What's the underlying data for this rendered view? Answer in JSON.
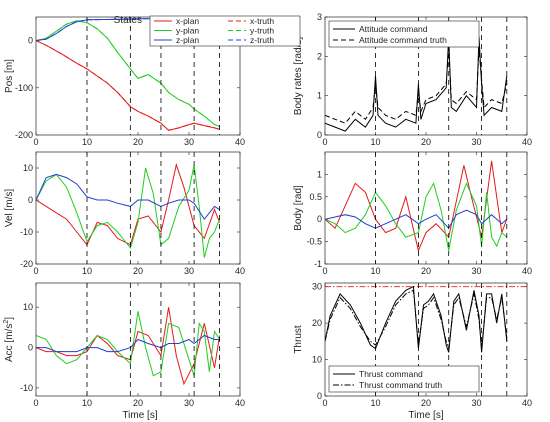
{
  "figure": {
    "states_label": "States",
    "x_axis_label": "Time [s]",
    "event_times": [
      10,
      18.5,
      24.5,
      31,
      36
    ]
  },
  "chart_data": [
    {
      "id": "pos",
      "type": "line",
      "ylabel": "Pos [m]",
      "xlim": [
        0,
        40
      ],
      "ylim": [
        -200,
        50
      ],
      "xticks": [
        0,
        10,
        20,
        30,
        40
      ],
      "yticks": [
        -200,
        -100,
        0
      ],
      "legend": {
        "title": "States",
        "placement": "top",
        "columns": 2
      },
      "series": [
        {
          "name": "x-plan",
          "color": "#e41a1c",
          "dash": "solid",
          "x": [
            0,
            2,
            5,
            8,
            10,
            12,
            14,
            16,
            18.5,
            20,
            22,
            24.5,
            26,
            28,
            30,
            31,
            33,
            35,
            36
          ],
          "y": [
            0,
            -10,
            -28,
            -48,
            -60,
            -75,
            -90,
            -110,
            -140,
            -150,
            -160,
            -175,
            -190,
            -185,
            -178,
            -175,
            -180,
            -185,
            -188
          ]
        },
        {
          "name": "x-truth",
          "color": "#e41a1c",
          "dash": "dashed",
          "x": [
            0,
            2,
            5,
            8,
            10,
            12,
            14,
            16,
            18.5,
            20,
            22,
            24.5,
            26,
            28,
            30,
            31,
            33,
            35,
            36
          ],
          "y": [
            0,
            -10,
            -28,
            -48,
            -60,
            -75,
            -90,
            -110,
            -140,
            -150,
            -160,
            -175,
            -190,
            -185,
            -178,
            -175,
            -180,
            -185,
            -188
          ]
        },
        {
          "name": "y-plan",
          "color": "#22cc22",
          "dash": "solid",
          "x": [
            0,
            2,
            4,
            6,
            8,
            10,
            12,
            14,
            16,
            18.5,
            20,
            22,
            24.5,
            26,
            28,
            30,
            31,
            33,
            35,
            36
          ],
          "y": [
            0,
            5,
            20,
            35,
            42,
            38,
            25,
            5,
            -25,
            -60,
            -80,
            -72,
            -90,
            -110,
            -125,
            -135,
            -145,
            -160,
            -178,
            -182
          ]
        },
        {
          "name": "y-truth",
          "color": "#22cc22",
          "dash": "dashed",
          "x": [
            0,
            2,
            4,
            6,
            8,
            10,
            12,
            14,
            16,
            18.5,
            20,
            22,
            24.5,
            26,
            28,
            30,
            31,
            33,
            35,
            36
          ],
          "y": [
            0,
            5,
            20,
            35,
            42,
            38,
            25,
            5,
            -25,
            -60,
            -80,
            -72,
            -90,
            -110,
            -125,
            -135,
            -145,
            -160,
            -178,
            -182
          ]
        },
        {
          "name": "z-plan",
          "color": "#1f3fd6",
          "dash": "solid",
          "x": [
            0,
            2,
            4,
            6,
            8,
            10,
            15,
            20,
            25,
            30,
            33,
            35,
            36
          ],
          "y": [
            0,
            3,
            15,
            30,
            40,
            44,
            45,
            46,
            47,
            47,
            45,
            42,
            40
          ]
        },
        {
          "name": "z-truth",
          "color": "#1f3fd6",
          "dash": "dashed",
          "x": [
            0,
            2,
            4,
            6,
            8,
            10,
            15,
            20,
            25,
            30,
            33,
            35,
            36
          ],
          "y": [
            0,
            3,
            15,
            30,
            40,
            44,
            45,
            46,
            47,
            47,
            45,
            42,
            40
          ]
        }
      ]
    },
    {
      "id": "vel",
      "type": "line",
      "ylabel": "Vel [m/s]",
      "xlim": [
        0,
        40
      ],
      "ylim": [
        -20,
        15
      ],
      "xticks": [
        0,
        10,
        20,
        30,
        40
      ],
      "yticks": [
        -20,
        -10,
        0,
        10
      ],
      "series": [
        {
          "name": "x",
          "color": "#e41a1c",
          "dash": "solid",
          "x": [
            0,
            2,
            4,
            6,
            8,
            10,
            12,
            14,
            16,
            18.5,
            20,
            22,
            24.5,
            26,
            27.5,
            29,
            31,
            33,
            35,
            36
          ],
          "y": [
            0,
            -2,
            -4,
            -6,
            -10,
            -14,
            -7,
            -8,
            -12,
            -14,
            -6,
            -5,
            -10,
            0,
            11,
            4,
            -8,
            -12,
            -3,
            -7
          ]
        },
        {
          "name": "y",
          "color": "#22cc22",
          "dash": "solid",
          "x": [
            0,
            2,
            4,
            6,
            8,
            10,
            12,
            14,
            16,
            18.5,
            20,
            21.5,
            23,
            24.5,
            26,
            28,
            30,
            31,
            32,
            33,
            34,
            35,
            36
          ],
          "y": [
            0,
            6,
            8,
            4,
            -4,
            -13,
            -8,
            -7,
            -10,
            -15,
            -7,
            10,
            2,
            -14,
            -12,
            -2,
            3,
            11,
            -2,
            -18,
            -12,
            -10,
            -6
          ]
        },
        {
          "name": "z",
          "color": "#1f3fd6",
          "dash": "solid",
          "x": [
            0,
            2,
            4,
            6,
            8,
            10,
            12,
            14,
            16,
            18.5,
            20,
            22,
            24.5,
            26,
            28,
            30,
            31,
            33,
            35,
            36
          ],
          "y": [
            0,
            7,
            8,
            7,
            5,
            1,
            0,
            0,
            -1,
            -2,
            0,
            0,
            -2,
            -1,
            0,
            0,
            -1,
            -6,
            -2,
            -3
          ]
        }
      ]
    },
    {
      "id": "acc",
      "type": "line",
      "ylabel": "Acc [m/s",
      "ylabel_superscript": "2",
      "ylabel_suffix": "]",
      "xlim": [
        0,
        40
      ],
      "ylim": [
        -12,
        16
      ],
      "xticks": [
        0,
        10,
        20,
        30,
        40
      ],
      "yticks": [
        -10,
        0,
        10
      ],
      "series": [
        {
          "name": "x",
          "color": "#e41a1c",
          "dash": "solid",
          "x": [
            0,
            2,
            4,
            6,
            8,
            10,
            12,
            14,
            16,
            18.5,
            20,
            22,
            24.5,
            26,
            27.5,
            29,
            31,
            33,
            35,
            36
          ],
          "y": [
            0,
            -1,
            -1,
            -2,
            -2,
            -1,
            3,
            1,
            -2,
            -3,
            4,
            3,
            -2,
            10,
            -2,
            -9,
            -4,
            6,
            -5,
            3
          ]
        },
        {
          "name": "y",
          "color": "#22cc22",
          "dash": "solid",
          "x": [
            0,
            2,
            4,
            6,
            8,
            10,
            12,
            14,
            16,
            18.5,
            20,
            21.5,
            23,
            24.5,
            26,
            28,
            30,
            31,
            32,
            33,
            34,
            35,
            36
          ],
          "y": [
            3,
            2,
            -2,
            -4,
            -3,
            0,
            3,
            2,
            -1,
            -4,
            9,
            0,
            -7,
            -6,
            6,
            5,
            -3,
            -7,
            6,
            4,
            -6,
            4,
            2
          ]
        },
        {
          "name": "z",
          "color": "#1f3fd6",
          "dash": "solid",
          "x": [
            0,
            2,
            4,
            6,
            8,
            10,
            12,
            14,
            16,
            18.5,
            20,
            22,
            24.5,
            26,
            28,
            30,
            31,
            33,
            35,
            36
          ],
          "y": [
            0,
            0,
            -1,
            -1,
            -1,
            0,
            0,
            -1,
            -1,
            0,
            2,
            1,
            0,
            1,
            1,
            2,
            1,
            3,
            2,
            2
          ]
        }
      ]
    },
    {
      "id": "body-rates",
      "type": "line",
      "ylabel": "Body rates [rad/s]",
      "xlim": [
        0,
        40
      ],
      "ylim": [
        0,
        3
      ],
      "xticks": [
        0,
        10,
        20,
        30,
        40
      ],
      "yticks": [
        0,
        1,
        2,
        3
      ],
      "legend": {
        "placement": "top-left"
      },
      "series": [
        {
          "name": "Attitude command",
          "color": "#000000",
          "dash": "solid",
          "x": [
            0,
            2,
            4,
            6,
            8,
            9.5,
            10,
            10.5,
            12,
            14,
            16,
            18,
            18.5,
            19,
            20,
            22,
            24,
            24.5,
            25,
            26,
            28,
            30,
            30.5,
            31,
            31.5,
            33,
            35,
            36
          ],
          "y": [
            0.3,
            0.2,
            0.1,
            0.4,
            0.2,
            0.5,
            1.5,
            0.5,
            0.3,
            0.2,
            0.4,
            0.3,
            1.3,
            0.4,
            0.8,
            0.9,
            1.2,
            2.5,
            0.7,
            0.6,
            1.0,
            0.7,
            2.5,
            1.3,
            0.5,
            0.7,
            0.6,
            1.5
          ]
        },
        {
          "name": "Attitude command truth",
          "color": "#000000",
          "dash": "dashed",
          "x": [
            0,
            2,
            4,
            6,
            8,
            9.5,
            10,
            10.5,
            12,
            14,
            16,
            18,
            18.5,
            19,
            20,
            22,
            24,
            24.5,
            25,
            26,
            28,
            30,
            30.5,
            31,
            31.5,
            33,
            35,
            36
          ],
          "y": [
            0.5,
            0.4,
            0.3,
            0.6,
            0.4,
            0.7,
            1.3,
            0.7,
            0.5,
            0.4,
            0.6,
            0.5,
            1.1,
            0.6,
            0.9,
            1.0,
            1.3,
            2.2,
            0.9,
            0.8,
            1.1,
            0.9,
            2.2,
            1.4,
            0.7,
            0.9,
            0.8,
            1.3
          ]
        }
      ]
    },
    {
      "id": "body",
      "type": "line",
      "ylabel": "Body [rad]",
      "xlim": [
        0,
        40
      ],
      "ylim": [
        -1,
        1.5
      ],
      "xticks": [
        0,
        10,
        20,
        30,
        40
      ],
      "yticks": [
        -1,
        -0.5,
        0,
        0.5,
        1
      ],
      "series": [
        {
          "name": "x",
          "color": "#e41a1c",
          "dash": "solid",
          "x": [
            0,
            2,
            4,
            6,
            8,
            10,
            12,
            14,
            16,
            18.5,
            20,
            22,
            24.5,
            26,
            27.5,
            29,
            31,
            33,
            35,
            36
          ],
          "y": [
            0,
            -0.2,
            0.3,
            0.8,
            0.6,
            0,
            -0.3,
            -0.2,
            0.5,
            -0.7,
            -0.3,
            -0.1,
            -0.4,
            0.4,
            1.2,
            0.5,
            -0.4,
            1.3,
            -0.3,
            0
          ]
        },
        {
          "name": "y",
          "color": "#22cc22",
          "dash": "solid",
          "x": [
            0,
            2,
            4,
            6,
            8,
            10,
            12,
            14,
            16,
            18.5,
            20,
            21.5,
            23,
            24.5,
            26,
            28,
            30,
            31,
            32,
            33,
            34,
            35,
            36
          ],
          "y": [
            0,
            -0.1,
            -0.3,
            -0.2,
            0.1,
            0.6,
            0.3,
            -0.1,
            -0.4,
            -0.3,
            0.5,
            0.8,
            0.2,
            -0.7,
            0.2,
            0.8,
            0.3,
            -0.6,
            0.6,
            -0.4,
            -0.6,
            -0.3,
            -0.4
          ]
        },
        {
          "name": "z",
          "color": "#1f3fd6",
          "dash": "solid",
          "x": [
            0,
            2,
            4,
            6,
            8,
            10,
            12,
            14,
            16,
            18.5,
            20,
            22,
            24.5,
            26,
            28,
            30,
            31,
            33,
            35,
            36
          ],
          "y": [
            0,
            0.05,
            0.1,
            0.05,
            -0.1,
            -0.2,
            -0.1,
            0,
            0.1,
            -0.1,
            0,
            0.1,
            -0.2,
            0.1,
            0.2,
            0.1,
            -0.1,
            0.1,
            -0.1,
            0
          ]
        }
      ]
    },
    {
      "id": "thrust",
      "type": "line",
      "ylabel": "Thrust",
      "xlim": [
        0,
        40
      ],
      "ylim": [
        0,
        31
      ],
      "xticks": [
        0,
        10,
        20,
        30,
        40
      ],
      "yticks": [
        0,
        10,
        20,
        30
      ],
      "limit_line": {
        "y": 30,
        "color": "#e41a1c",
        "dash": "dashdot"
      },
      "legend": {
        "placement": "bottom-left"
      },
      "series": [
        {
          "name": "Thrust command",
          "color": "#000000",
          "dash": "solid",
          "x": [
            0,
            1,
            3,
            5,
            7,
            9,
            10,
            12,
            14,
            16,
            17.5,
            18.5,
            19.5,
            20.5,
            21.5,
            23,
            24,
            24.5,
            25.5,
            26.5,
            28,
            29.5,
            30.5,
            31,
            32,
            33,
            34,
            35,
            36
          ],
          "y": [
            15,
            22,
            28,
            25,
            20,
            14,
            13,
            20,
            26,
            29,
            30,
            13,
            25,
            26,
            28,
            22,
            14,
            12,
            26,
            28,
            18,
            29,
            22,
            12,
            28,
            28,
            20,
            28,
            15
          ]
        },
        {
          "name": "Thrust command truth",
          "color": "#000000",
          "dash": "dashdot",
          "x": [
            0,
            1,
            3,
            5,
            7,
            9,
            10,
            12,
            14,
            16,
            17.5,
            18.5,
            19.5,
            20.5,
            21.5,
            23,
            24,
            24.5,
            25.5,
            26.5,
            28,
            29.5,
            30.5,
            31,
            32,
            33,
            34,
            35,
            36
          ],
          "y": [
            15,
            21,
            27,
            24,
            19,
            15,
            14,
            19,
            25,
            28,
            29,
            14,
            24,
            25,
            27,
            21,
            15,
            13,
            25,
            27,
            19,
            28,
            21,
            13,
            27,
            27,
            21,
            27,
            16
          ]
        }
      ]
    }
  ]
}
